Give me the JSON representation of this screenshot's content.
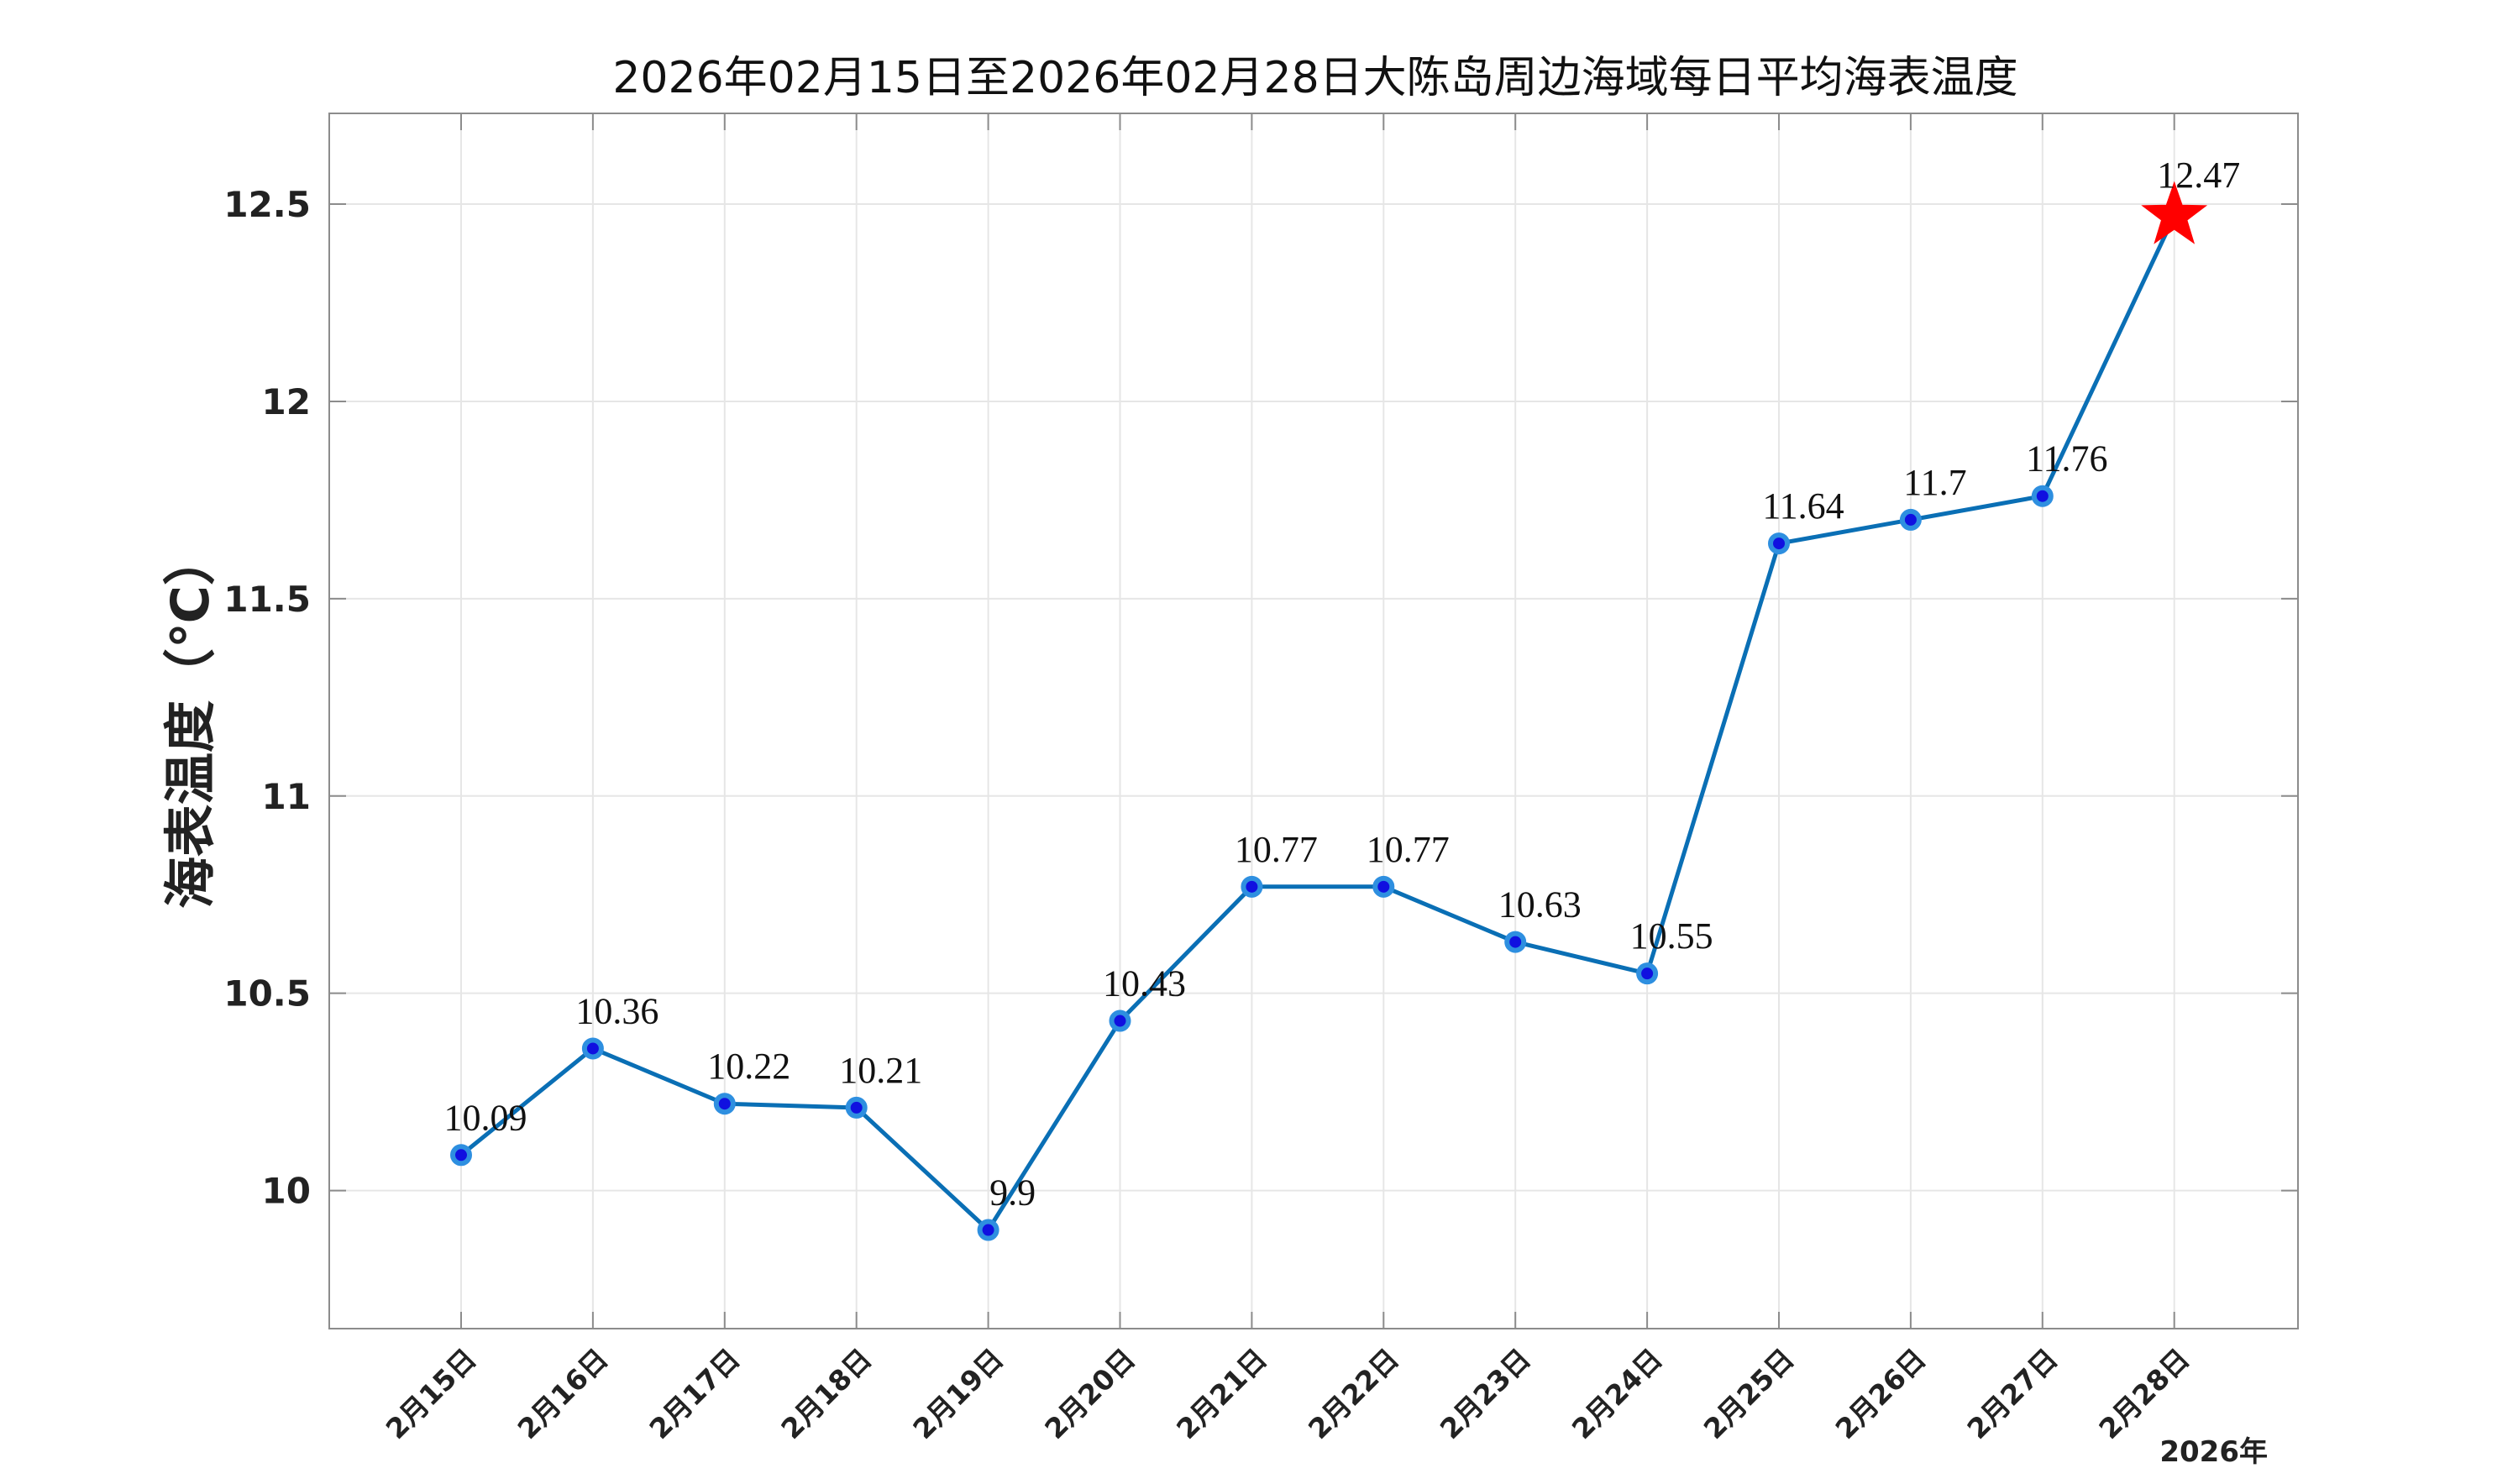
{
  "chart_data": {
    "type": "line",
    "title": "2026年02月15日至2026年02月28日大陈岛周边海域每日平均海表温度",
    "xlabel": "",
    "ylabel": "海表温度（℃）",
    "x_year_label": "2026年",
    "categories": [
      "2月15日",
      "2月16日",
      "2月17日",
      "2月18日",
      "2月19日",
      "2月20日",
      "2月21日",
      "2月22日",
      "2月23日",
      "2月24日",
      "2月25日",
      "2月26日",
      "2月27日",
      "2月28日"
    ],
    "values": [
      10.09,
      10.36,
      10.22,
      10.21,
      9.9,
      10.43,
      10.77,
      10.77,
      10.63,
      10.55,
      11.64,
      11.7,
      11.76,
      12.47
    ],
    "data_labels": [
      "10.09",
      "10.36",
      "10.22",
      "10.21",
      "9.9",
      "10.43",
      "10.77",
      "10.77",
      "10.63",
      "10.55",
      "11.64",
      "11.7",
      "11.76",
      "12.47"
    ],
    "ylim": [
      9.65,
      12.73
    ],
    "yticks": [
      10,
      10.5,
      11,
      11.5,
      12,
      12.5
    ],
    "ytick_labels": [
      "10",
      "10.5",
      "11",
      "11.5",
      "12",
      "12.5"
    ],
    "grid": true,
    "last_point_marker": "red-star",
    "colors": {
      "line": "#0A6FB5",
      "marker_fill": "#1010E0",
      "marker_edge": "#2E8FE0",
      "star": "#FF0000",
      "grid": "#E6E6E6",
      "axes": "#8C8C8C"
    }
  }
}
